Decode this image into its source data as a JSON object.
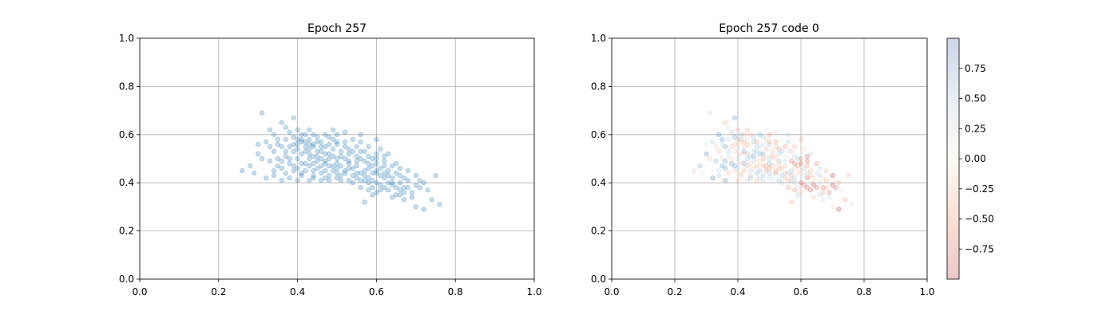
{
  "chart_data": [
    {
      "type": "scatter",
      "title": "Epoch 257",
      "xlim": [
        0.0,
        1.0
      ],
      "ylim": [
        0.0,
        1.0
      ],
      "xticks": [
        "0.0",
        "0.2",
        "0.4",
        "0.6",
        "0.8",
        "1.0"
      ],
      "yticks": [
        "0.0",
        "0.2",
        "0.4",
        "0.6",
        "0.8",
        "1.0"
      ],
      "grid": true,
      "color": "#1f77b4",
      "point_alpha": 0.25,
      "points": [
        [
          0.31,
          0.69
        ],
        [
          0.39,
          0.67
        ],
        [
          0.33,
          0.62
        ],
        [
          0.36,
          0.65
        ],
        [
          0.38,
          0.61
        ],
        [
          0.41,
          0.58
        ],
        [
          0.44,
          0.6
        ],
        [
          0.42,
          0.55
        ],
        [
          0.45,
          0.57
        ],
        [
          0.47,
          0.55
        ],
        [
          0.5,
          0.6
        ],
        [
          0.52,
          0.61
        ],
        [
          0.48,
          0.52
        ],
        [
          0.46,
          0.5
        ],
        [
          0.43,
          0.52
        ],
        [
          0.4,
          0.5
        ],
        [
          0.38,
          0.48
        ],
        [
          0.35,
          0.5
        ],
        [
          0.33,
          0.55
        ],
        [
          0.3,
          0.52
        ],
        [
          0.28,
          0.47
        ],
        [
          0.26,
          0.45
        ],
        [
          0.29,
          0.44
        ],
        [
          0.32,
          0.42
        ],
        [
          0.34,
          0.45
        ],
        [
          0.37,
          0.44
        ],
        [
          0.4,
          0.46
        ],
        [
          0.42,
          0.48
        ],
        [
          0.45,
          0.46
        ],
        [
          0.48,
          0.47
        ],
        [
          0.5,
          0.5
        ],
        [
          0.53,
          0.52
        ],
        [
          0.55,
          0.55
        ],
        [
          0.57,
          0.53
        ],
        [
          0.59,
          0.5
        ],
        [
          0.61,
          0.54
        ],
        [
          0.6,
          0.48
        ],
        [
          0.58,
          0.46
        ],
        [
          0.56,
          0.44
        ],
        [
          0.54,
          0.46
        ],
        [
          0.52,
          0.44
        ],
        [
          0.5,
          0.42
        ],
        [
          0.48,
          0.43
        ],
        [
          0.46,
          0.41
        ],
        [
          0.44,
          0.43
        ],
        [
          0.58,
          0.42
        ],
        [
          0.6,
          0.44
        ],
        [
          0.62,
          0.42
        ],
        [
          0.64,
          0.4
        ],
        [
          0.66,
          0.43
        ],
        [
          0.68,
          0.45
        ],
        [
          0.63,
          0.37
        ],
        [
          0.65,
          0.35
        ],
        [
          0.67,
          0.33
        ],
        [
          0.69,
          0.36
        ],
        [
          0.71,
          0.38
        ],
        [
          0.73,
          0.37
        ],
        [
          0.7,
          0.3
        ],
        [
          0.72,
          0.29
        ],
        [
          0.74,
          0.33
        ],
        [
          0.76,
          0.31
        ],
        [
          0.75,
          0.43
        ],
        [
          0.6,
          0.4
        ],
        [
          0.61,
          0.37
        ],
        [
          0.59,
          0.35
        ],
        [
          0.57,
          0.32
        ],
        [
          0.56,
          0.38
        ],
        [
          0.54,
          0.4
        ],
        [
          0.55,
          0.49
        ],
        [
          0.52,
          0.57
        ],
        [
          0.49,
          0.58
        ],
        [
          0.47,
          0.6
        ],
        [
          0.43,
          0.58
        ],
        [
          0.4,
          0.62
        ],
        [
          0.37,
          0.58
        ],
        [
          0.35,
          0.58
        ],
        [
          0.39,
          0.53
        ],
        [
          0.41,
          0.52
        ],
        [
          0.44,
          0.51
        ],
        [
          0.46,
          0.53
        ],
        [
          0.49,
          0.54
        ],
        [
          0.51,
          0.53
        ],
        [
          0.53,
          0.49
        ],
        [
          0.55,
          0.51
        ],
        [
          0.57,
          0.49
        ],
        [
          0.59,
          0.44
        ],
        [
          0.61,
          0.46
        ],
        [
          0.63,
          0.45
        ],
        [
          0.62,
          0.49
        ],
        [
          0.64,
          0.47
        ],
        [
          0.66,
          0.4
        ],
        [
          0.67,
          0.38
        ],
        [
          0.65,
          0.48
        ],
        [
          0.63,
          0.52
        ],
        [
          0.6,
          0.52
        ],
        [
          0.42,
          0.45
        ],
        [
          0.38,
          0.42
        ],
        [
          0.36,
          0.41
        ],
        [
          0.44,
          0.55
        ],
        [
          0.46,
          0.57
        ],
        [
          0.48,
          0.56
        ],
        [
          0.5,
          0.56
        ],
        [
          0.51,
          0.47
        ],
        [
          0.53,
          0.46
        ],
        [
          0.47,
          0.45
        ],
        [
          0.45,
          0.49
        ],
        [
          0.43,
          0.47
        ],
        [
          0.41,
          0.44
        ],
        [
          0.39,
          0.47
        ],
        [
          0.37,
          0.51
        ],
        [
          0.34,
          0.53
        ],
        [
          0.32,
          0.57
        ],
        [
          0.36,
          0.55
        ],
        [
          0.4,
          0.56
        ],
        [
          0.42,
          0.6
        ],
        [
          0.45,
          0.59
        ],
        [
          0.41,
          0.6
        ],
        [
          0.39,
          0.56
        ],
        [
          0.58,
          0.55
        ],
        [
          0.56,
          0.57
        ],
        [
          0.54,
          0.58
        ],
        [
          0.62,
          0.51
        ],
        [
          0.64,
          0.42
        ],
        [
          0.66,
          0.46
        ],
        [
          0.68,
          0.41
        ],
        [
          0.7,
          0.39
        ],
        [
          0.71,
          0.41
        ],
        [
          0.58,
          0.4
        ],
        [
          0.57,
          0.43
        ],
        [
          0.55,
          0.42
        ],
        [
          0.53,
          0.41
        ],
        [
          0.51,
          0.41
        ],
        [
          0.49,
          0.45
        ],
        [
          0.47,
          0.48
        ],
        [
          0.5,
          0.48
        ],
        [
          0.52,
          0.5
        ],
        [
          0.48,
          0.5
        ],
        [
          0.44,
          0.45
        ],
        [
          0.46,
          0.44
        ],
        [
          0.43,
          0.41
        ],
        [
          0.4,
          0.41
        ],
        [
          0.35,
          0.47
        ],
        [
          0.33,
          0.49
        ],
        [
          0.31,
          0.5
        ],
        [
          0.3,
          0.56
        ],
        [
          0.34,
          0.6
        ],
        [
          0.37,
          0.63
        ],
        [
          0.43,
          0.62
        ],
        [
          0.49,
          0.62
        ],
        [
          0.56,
          0.6
        ],
        [
          0.6,
          0.58
        ],
        [
          0.59,
          0.47
        ],
        [
          0.61,
          0.43
        ],
        [
          0.63,
          0.4
        ],
        [
          0.65,
          0.38
        ],
        [
          0.67,
          0.36
        ],
        [
          0.69,
          0.34
        ],
        [
          0.72,
          0.4
        ],
        [
          0.61,
          0.39
        ],
        [
          0.6,
          0.36
        ],
        [
          0.57,
          0.45
        ],
        [
          0.55,
          0.47
        ],
        [
          0.51,
          0.51
        ],
        [
          0.45,
          0.53
        ],
        [
          0.43,
          0.5
        ],
        [
          0.41,
          0.48
        ],
        [
          0.38,
          0.5
        ],
        [
          0.36,
          0.46
        ],
        [
          0.34,
          0.43
        ],
        [
          0.42,
          0.57
        ],
        [
          0.44,
          0.56
        ],
        [
          0.47,
          0.52
        ],
        [
          0.49,
          0.51
        ],
        [
          0.53,
          0.54
        ],
        [
          0.56,
          0.53
        ],
        [
          0.58,
          0.51
        ],
        [
          0.6,
          0.5
        ],
        [
          0.62,
          0.47
        ],
        [
          0.65,
          0.44
        ],
        [
          0.67,
          0.42
        ],
        [
          0.7,
          0.43
        ],
        [
          0.68,
          0.38
        ],
        [
          0.66,
          0.35
        ],
        [
          0.64,
          0.34
        ],
        [
          0.62,
          0.38
        ],
        [
          0.59,
          0.41
        ],
        [
          0.57,
          0.41
        ],
        [
          0.55,
          0.44
        ],
        [
          0.52,
          0.45
        ],
        [
          0.5,
          0.44
        ],
        [
          0.48,
          0.41
        ],
        [
          0.46,
          0.47
        ],
        [
          0.44,
          0.48
        ],
        [
          0.42,
          0.53
        ],
        [
          0.4,
          0.54
        ],
        [
          0.38,
          0.55
        ],
        [
          0.35,
          0.56
        ],
        [
          0.39,
          0.59
        ],
        [
          0.41,
          0.57
        ],
        [
          0.43,
          0.56
        ],
        [
          0.46,
          0.55
        ],
        [
          0.48,
          0.59
        ],
        [
          0.5,
          0.57
        ],
        [
          0.52,
          0.55
        ],
        [
          0.54,
          0.53
        ],
        [
          0.56,
          0.5
        ],
        [
          0.58,
          0.48
        ],
        [
          0.6,
          0.45
        ],
        [
          0.62,
          0.44
        ],
        [
          0.63,
          0.43
        ],
        [
          0.64,
          0.39
        ],
        [
          0.66,
          0.37
        ],
        [
          0.59,
          0.38
        ],
        [
          0.58,
          0.37
        ],
        [
          0.56,
          0.41
        ],
        [
          0.54,
          0.43
        ],
        [
          0.51,
          0.43
        ],
        [
          0.49,
          0.47
        ],
        [
          0.47,
          0.49
        ],
        [
          0.45,
          0.51
        ],
        [
          0.43,
          0.54
        ],
        [
          0.4,
          0.58
        ],
        [
          0.37,
          0.53
        ],
        [
          0.36,
          0.49
        ],
        [
          0.39,
          0.45
        ],
        [
          0.41,
          0.43
        ],
        [
          0.44,
          0.42
        ],
        [
          0.47,
          0.42
        ],
        [
          0.5,
          0.46
        ],
        [
          0.53,
          0.48
        ]
      ]
    },
    {
      "type": "scatter",
      "title": "Epoch 257 code 0",
      "xlim": [
        0.0,
        1.0
      ],
      "ylim": [
        0.0,
        1.0
      ],
      "xticks": [
        "0.0",
        "0.2",
        "0.4",
        "0.6",
        "0.8",
        "1.0"
      ],
      "yticks": [
        "0.0",
        "0.2",
        "0.4",
        "0.6",
        "0.8",
        "1.0"
      ],
      "grid": true,
      "colormap": "RdBu",
      "point_alpha": 0.25,
      "colorbar": {
        "range": [
          -1.0,
          1.0
        ],
        "ticks": [
          0.75,
          0.5,
          0.25,
          0.0,
          -0.25,
          -0.5,
          -0.75
        ],
        "tick_labels": [
          "0.75",
          "0.50",
          "0.25",
          "0.00",
          "−0.25",
          "−0.50",
          "−0.75"
        ]
      }
    }
  ]
}
